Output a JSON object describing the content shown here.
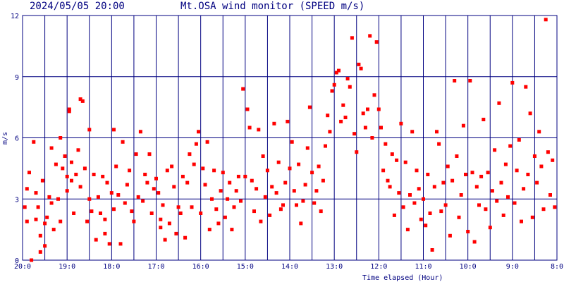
{
  "header": {
    "datetime": "2024/05/05 20:00",
    "title": "Mt.OSA wind monitor (SPEED m/s)"
  },
  "colors": {
    "frame": "#000080",
    "points": "#ff0000",
    "text": "#000080",
    "background": "#ffffff"
  },
  "chart_data": {
    "type": "scatter",
    "title": "Mt.OSA wind monitor (SPEED m/s)",
    "xlabel": "Time elapsed (Hour)",
    "ylabel": "m/s",
    "ylim": [
      0,
      12
    ],
    "xlim": [
      0,
      12
    ],
    "x_direction": "elapsed hours from the 20:00 reference; plotted left-to-right as 20:0 back to 8:0",
    "x_tick_labels": [
      "20:0",
      "19:0",
      "18:0",
      "17:0",
      "16:0",
      "15:0",
      "14:0",
      "13:0",
      "12:0",
      "11:0",
      "10:0",
      "9:0",
      "8:0"
    ],
    "y_ticks": [
      0,
      3,
      6,
      9,
      12
    ],
    "y_tick_labels": [
      "0",
      "3",
      "6",
      "9",
      "12"
    ],
    "grid": true,
    "legend": "none",
    "series": [
      {
        "points": [
          [
            0.05,
            2.6
          ],
          [
            0.1,
            3.5
          ],
          [
            0.15,
            4.3
          ],
          [
            0.1,
            1.9
          ],
          [
            0.2,
            0.0
          ],
          [
            0.25,
            5.8
          ],
          [
            0.3,
            3.3
          ],
          [
            0.3,
            2.0
          ],
          [
            0.35,
            2.6
          ],
          [
            0.4,
            1.2
          ],
          [
            0.4,
            0.4
          ],
          [
            0.45,
            3.9
          ],
          [
            0.5,
            1.8
          ],
          [
            0.5,
            0.7
          ],
          [
            0.55,
            2.1
          ],
          [
            0.6,
            3.1
          ],
          [
            0.65,
            5.5
          ],
          [
            0.65,
            2.8
          ],
          [
            0.7,
            1.5
          ],
          [
            0.75,
            4.7
          ],
          [
            0.8,
            3.0
          ],
          [
            0.85,
            1.9
          ],
          [
            0.85,
            6.0
          ],
          [
            0.9,
            4.5
          ],
          [
            0.95,
            5.1
          ],
          [
            1.0,
            4.1
          ],
          [
            1.0,
            3.4
          ],
          [
            1.05,
            7.3
          ],
          [
            1.05,
            7.4
          ],
          [
            1.1,
            4.8
          ],
          [
            1.1,
            3.9
          ],
          [
            1.15,
            2.3
          ],
          [
            1.2,
            4.2
          ],
          [
            1.25,
            5.4
          ],
          [
            1.3,
            3.6
          ],
          [
            1.3,
            7.9
          ],
          [
            1.35,
            7.8
          ],
          [
            1.4,
            4.5
          ],
          [
            1.45,
            1.9
          ],
          [
            1.5,
            6.4
          ],
          [
            1.5,
            3.0
          ],
          [
            1.55,
            2.4
          ],
          [
            1.6,
            4.2
          ],
          [
            1.65,
            1.0
          ],
          [
            1.7,
            3.1
          ],
          [
            1.75,
            2.3
          ],
          [
            1.8,
            4.1
          ],
          [
            1.85,
            1.3
          ],
          [
            1.85,
            2.0
          ],
          [
            1.9,
            3.8
          ],
          [
            1.95,
            0.8
          ],
          [
            2.0,
            3.3
          ],
          [
            2.05,
            6.4
          ],
          [
            2.05,
            2.5
          ],
          [
            2.1,
            4.6
          ],
          [
            2.15,
            3.2
          ],
          [
            2.2,
            0.8
          ],
          [
            2.25,
            5.8
          ],
          [
            2.3,
            2.8
          ],
          [
            2.35,
            3.7
          ],
          [
            2.4,
            4.4
          ],
          [
            2.45,
            2.4
          ],
          [
            2.5,
            1.9
          ],
          [
            2.55,
            5.2
          ],
          [
            2.6,
            3.1
          ],
          [
            2.65,
            6.3
          ],
          [
            2.7,
            2.9
          ],
          [
            2.75,
            4.2
          ],
          [
            2.8,
            3.8
          ],
          [
            2.85,
            5.2
          ],
          [
            2.9,
            2.3
          ],
          [
            2.95,
            3.5
          ],
          [
            3.0,
            4.0
          ],
          [
            3.05,
            3.3
          ],
          [
            3.1,
            1.6
          ],
          [
            3.1,
            2.0
          ],
          [
            3.15,
            2.7
          ],
          [
            3.2,
            1.0
          ],
          [
            3.25,
            4.4
          ],
          [
            3.3,
            1.8
          ],
          [
            3.35,
            4.6
          ],
          [
            3.4,
            3.6
          ],
          [
            3.45,
            1.3
          ],
          [
            3.5,
            2.6
          ],
          [
            3.55,
            2.3
          ],
          [
            3.6,
            4.1
          ],
          [
            3.65,
            1.1
          ],
          [
            3.7,
            3.8
          ],
          [
            3.75,
            5.2
          ],
          [
            3.8,
            2.6
          ],
          [
            3.85,
            4.7
          ],
          [
            3.9,
            5.7
          ],
          [
            3.95,
            6.3
          ],
          [
            4.0,
            2.3
          ],
          [
            4.05,
            4.5
          ],
          [
            4.1,
            3.7
          ],
          [
            4.15,
            5.8
          ],
          [
            4.2,
            1.5
          ],
          [
            4.25,
            3.0
          ],
          [
            4.3,
            4.4
          ],
          [
            4.35,
            2.5
          ],
          [
            4.4,
            1.8
          ],
          [
            4.45,
            3.4
          ],
          [
            4.5,
            4.3
          ],
          [
            4.55,
            2.1
          ],
          [
            4.6,
            3.0
          ],
          [
            4.65,
            3.8
          ],
          [
            4.7,
            1.5
          ],
          [
            4.75,
            2.6
          ],
          [
            4.8,
            3.4
          ],
          [
            4.85,
            4.1
          ],
          [
            4.9,
            2.9
          ],
          [
            4.95,
            8.4
          ],
          [
            5.0,
            4.1
          ],
          [
            5.05,
            7.4
          ],
          [
            5.1,
            6.5
          ],
          [
            5.15,
            3.9
          ],
          [
            5.2,
            2.4
          ],
          [
            5.25,
            3.5
          ],
          [
            5.3,
            6.4
          ],
          [
            5.35,
            1.9
          ],
          [
            5.4,
            5.1
          ],
          [
            5.45,
            3.1
          ],
          [
            5.5,
            4.4
          ],
          [
            5.55,
            2.2
          ],
          [
            5.6,
            3.6
          ],
          [
            5.65,
            6.7
          ],
          [
            5.7,
            3.3
          ],
          [
            5.75,
            4.8
          ],
          [
            5.8,
            2.5
          ],
          [
            5.85,
            2.7
          ],
          [
            5.9,
            3.8
          ],
          [
            5.95,
            6.8
          ],
          [
            6.0,
            4.5
          ],
          [
            6.05,
            5.8
          ],
          [
            6.1,
            3.4
          ],
          [
            6.15,
            2.7
          ],
          [
            6.2,
            4.7
          ],
          [
            6.25,
            1.8
          ],
          [
            6.3,
            2.9
          ],
          [
            6.35,
            3.7
          ],
          [
            6.4,
            5.5
          ],
          [
            6.45,
            7.5
          ],
          [
            6.5,
            4.3
          ],
          [
            6.55,
            2.8
          ],
          [
            6.6,
            3.4
          ],
          [
            6.65,
            4.6
          ],
          [
            6.7,
            2.4
          ],
          [
            6.75,
            3.9
          ],
          [
            6.8,
            5.6
          ],
          [
            6.85,
            7.1
          ],
          [
            6.9,
            6.3
          ],
          [
            6.95,
            8.3
          ],
          [
            7.0,
            8.6
          ],
          [
            7.05,
            9.2
          ],
          [
            7.1,
            9.3
          ],
          [
            7.15,
            6.8
          ],
          [
            7.2,
            7.6
          ],
          [
            7.25,
            7.0
          ],
          [
            7.3,
            8.9
          ],
          [
            7.35,
            8.5
          ],
          [
            7.4,
            10.9
          ],
          [
            7.45,
            6.2
          ],
          [
            7.5,
            5.3
          ],
          [
            7.55,
            9.6
          ],
          [
            7.6,
            9.4
          ],
          [
            7.65,
            7.2
          ],
          [
            7.7,
            6.5
          ],
          [
            7.75,
            7.4
          ],
          [
            7.8,
            11.0
          ],
          [
            7.85,
            6.0
          ],
          [
            7.9,
            8.1
          ],
          [
            7.95,
            10.7
          ],
          [
            8.0,
            7.4
          ],
          [
            8.05,
            6.5
          ],
          [
            8.1,
            4.4
          ],
          [
            8.15,
            5.7
          ],
          [
            8.2,
            3.9
          ],
          [
            8.25,
            3.6
          ],
          [
            8.3,
            5.2
          ],
          [
            8.35,
            2.2
          ],
          [
            8.4,
            4.9
          ],
          [
            8.45,
            3.3
          ],
          [
            8.5,
            6.7
          ],
          [
            8.55,
            2.6
          ],
          [
            8.6,
            4.8
          ],
          [
            8.65,
            1.5
          ],
          [
            8.7,
            3.2
          ],
          [
            8.75,
            6.3
          ],
          [
            8.8,
            2.8
          ],
          [
            8.85,
            4.4
          ],
          [
            8.9,
            3.5
          ],
          [
            8.95,
            2.0
          ],
          [
            9.0,
            3.0
          ],
          [
            9.05,
            1.7
          ],
          [
            9.1,
            4.2
          ],
          [
            9.15,
            2.3
          ],
          [
            9.2,
            0.5
          ],
          [
            9.25,
            3.6
          ],
          [
            9.3,
            6.3
          ],
          [
            9.35,
            5.7
          ],
          [
            9.4,
            2.4
          ],
          [
            9.45,
            3.8
          ],
          [
            9.5,
            2.7
          ],
          [
            9.55,
            4.6
          ],
          [
            9.6,
            1.2
          ],
          [
            9.65,
            3.9
          ],
          [
            9.7,
            8.8
          ],
          [
            9.75,
            5.1
          ],
          [
            9.8,
            2.1
          ],
          [
            9.85,
            3.2
          ],
          [
            9.9,
            6.6
          ],
          [
            9.95,
            4.2
          ],
          [
            10.0,
            1.4
          ],
          [
            10.05,
            8.8
          ],
          [
            10.1,
            4.3
          ],
          [
            10.15,
            0.9
          ],
          [
            10.2,
            3.6
          ],
          [
            10.25,
            2.7
          ],
          [
            10.3,
            4.1
          ],
          [
            10.35,
            6.9
          ],
          [
            10.4,
            2.5
          ],
          [
            10.45,
            4.3
          ],
          [
            10.5,
            1.6
          ],
          [
            10.55,
            3.4
          ],
          [
            10.6,
            5.4
          ],
          [
            10.65,
            2.9
          ],
          [
            10.7,
            7.7
          ],
          [
            10.75,
            3.8
          ],
          [
            10.8,
            2.2
          ],
          [
            10.85,
            4.7
          ],
          [
            10.9,
            3.1
          ],
          [
            10.95,
            5.6
          ],
          [
            11.0,
            8.7
          ],
          [
            11.05,
            2.8
          ],
          [
            11.1,
            4.4
          ],
          [
            11.15,
            5.9
          ],
          [
            11.2,
            1.9
          ],
          [
            11.25,
            3.5
          ],
          [
            11.3,
            8.5
          ],
          [
            11.35,
            4.2
          ],
          [
            11.4,
            7.2
          ],
          [
            11.45,
            2.1
          ],
          [
            11.5,
            5.1
          ],
          [
            11.55,
            3.8
          ],
          [
            11.6,
            6.3
          ],
          [
            11.65,
            4.6
          ],
          [
            11.7,
            2.5
          ],
          [
            11.75,
            11.8
          ],
          [
            11.8,
            5.3
          ],
          [
            11.85,
            3.2
          ],
          [
            11.9,
            4.9
          ],
          [
            11.95,
            2.6
          ]
        ]
      }
    ]
  }
}
